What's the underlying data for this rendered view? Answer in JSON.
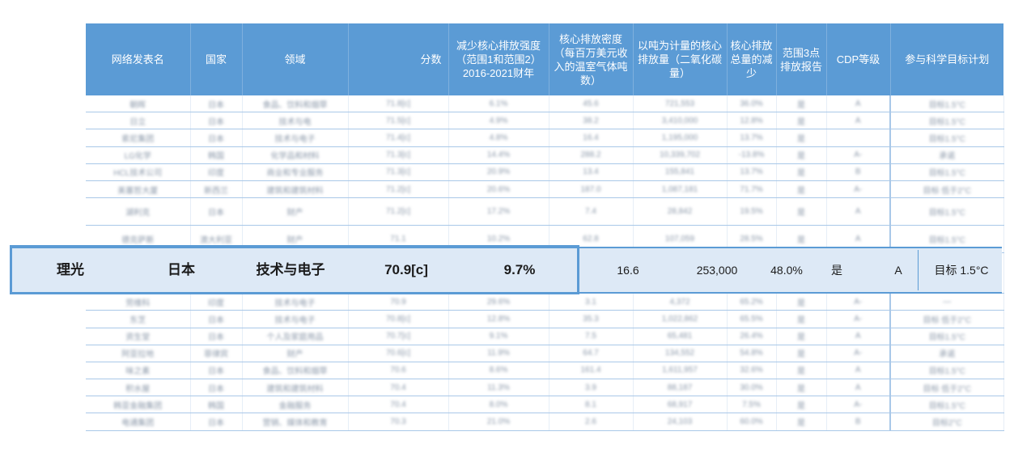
{
  "columns": [
    "网络发表名",
    "国家",
    "领域",
    "分数",
    "减少核心排放强度（范围1和范围2）2016-2021财年",
    "核心排放密度（每百万美元收入的温室气体吨数）",
    "以吨为计量的核心排放量（二氧化碳量）",
    "核心排放总量的减少",
    "范围3点排放报告",
    "CDP等级",
    "参与科学目标计划"
  ],
  "rows_top": [
    [
      "朝晖",
      "日本",
      "食品、饮料和烟草",
      "71.8[c]",
      "6.1%",
      "45.6",
      "721,553",
      "36.0%",
      "是",
      "A",
      "目标1.5°C"
    ],
    [
      "日立",
      "日本",
      "技术与电",
      "71.5[c]",
      "4.9%",
      "38.2",
      "3,410,000",
      "12.8%",
      "是",
      "A",
      "目标1.5°C"
    ],
    [
      "索尼集团",
      "日本",
      "技术与电子",
      "71.4[c]",
      "4.8%",
      "16.4",
      "1,195,000",
      "13.7%",
      "是",
      "",
      "目标1.5°C"
    ],
    [
      "LG化学",
      "韩国",
      "化学品和材料",
      "71.3[c]",
      "14.4%",
      "288.2",
      "10,339,702",
      "-13.8%",
      "是",
      "A-",
      "承诺"
    ],
    [
      "HCL技术公司",
      "印度",
      "商业和专业服务",
      "71.3[c]",
      "20.9%",
      "13.4",
      "155,841",
      "13.7%",
      "是",
      "B",
      "目标1.5°C"
    ],
    [
      "美塞哲大厦",
      "新西兰",
      "建筑和建筑材料",
      "71.2[c]",
      "20.6%",
      "187.0",
      "1,087,181",
      "71.7%",
      "是",
      "A-",
      "目标 低于2°C"
    ],
    [
      "湖利克",
      "日本",
      "财产",
      "71.2[c]",
      "17.2%",
      "7.4",
      "28,842",
      "19.5%",
      "是",
      "A",
      "目标1.5°C"
    ],
    [
      "德克萨斯",
      "澳大利亚",
      "财产",
      "71.1",
      "10.2%",
      "62.8",
      "107,059",
      "28.5%",
      "是",
      "A",
      "目标1.5°C"
    ]
  ],
  "highlight": {
    "name": "理光",
    "country": "日本",
    "sector": "技术与电子",
    "score": "70.9[c]",
    "intensity_reduction": "9.7%",
    "emission_density": "16.6",
    "emissions_tonnes": "253,000",
    "total_reduction": "48.0%",
    "scope3": "是",
    "cdp": "A",
    "sbti": "目标 1.5°C"
  },
  "rows_bottom": [
    [
      "劳维科",
      "印度",
      "技术与电子",
      "70.9",
      "29.6%",
      "3.1",
      "4,372",
      "65.2%",
      "是",
      "A-",
      "—"
    ],
    [
      "东芝",
      "日本",
      "技术与电子",
      "70.8[c]",
      "12.8%",
      "35.3",
      "1,022,862",
      "65.5%",
      "是",
      "A-",
      "目标 低于2°C"
    ],
    [
      "资生堂",
      "日本",
      "个人及家庭用品",
      "70.7[c]",
      "9.1%",
      "7.5",
      "65,481",
      "26.4%",
      "是",
      "A",
      "目标1.5°C"
    ],
    [
      "阿亚拉地",
      "菲律宾",
      "财产",
      "70.6[c]",
      "11.9%",
      "64.7",
      "134,552",
      "54.8%",
      "是",
      "A-",
      "承诺"
    ],
    [
      "味之素",
      "日本",
      "食品、饮料和烟草",
      "70.6",
      "8.6%",
      "161.4",
      "1,611,957",
      "32.6%",
      "是",
      "A",
      "目标1.5°C"
    ],
    [
      "积水屋",
      "日本",
      "建筑和建筑材料",
      "70.4",
      "11.3%",
      "3.9",
      "88,187",
      "30.0%",
      "是",
      "A",
      "目标 低于2°C"
    ],
    [
      "韩亚金融集团",
      "韩国",
      "金融服务",
      "70.4",
      "8.0%",
      "8.1",
      "68,917",
      "7.5%",
      "是",
      "A-",
      "目标1.5°C"
    ],
    [
      "电通集团",
      "日本",
      "营销、媒体和教育",
      "70.3",
      "21.0%",
      "2.6",
      "24,103",
      "60.0%",
      "是",
      "B",
      "目标2°C"
    ]
  ]
}
